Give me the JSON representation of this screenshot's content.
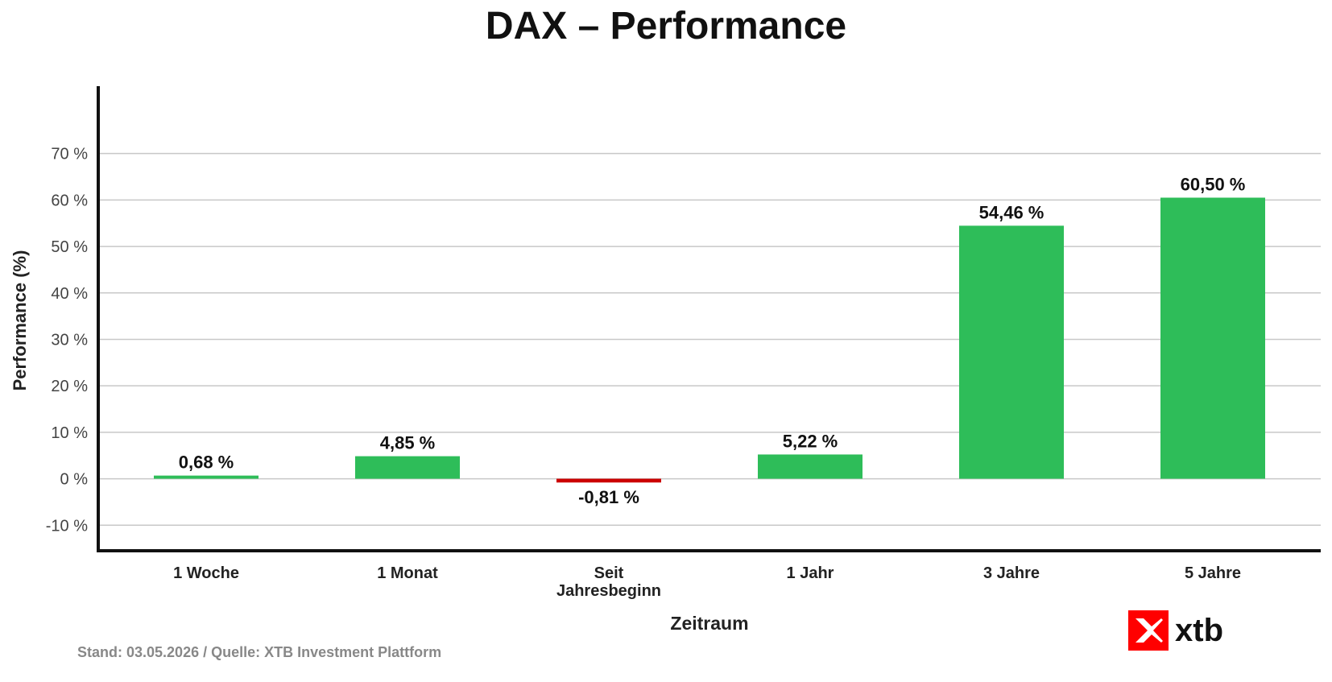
{
  "chart_data": {
    "type": "bar",
    "title": "DAX – Performance",
    "xlabel": "Zeitraum",
    "ylabel": "Performance (%)",
    "categories": [
      "1 Woche",
      "1 Monat",
      "Seit Jahresbeginn",
      "1 Jahr",
      "3 Jahre",
      "5 Jahre"
    ],
    "category_lines": [
      [
        "1 Woche"
      ],
      [
        "1 Monat"
      ],
      [
        "Seit",
        "Jahresbeginn"
      ],
      [
        "1 Jahr"
      ],
      [
        "3 Jahre"
      ],
      [
        "5 Jahre"
      ]
    ],
    "values": [
      0.68,
      4.85,
      -0.81,
      5.22,
      54.46,
      60.5
    ],
    "value_labels": [
      "0,68 %",
      "4,85 %",
      "-0,81 %",
      "5,22 %",
      "54,46 %",
      "60,50 %"
    ],
    "yticks": [
      -10,
      0,
      10,
      20,
      30,
      40,
      50,
      60,
      70
    ],
    "ytick_labels": [
      "-10 %",
      "0 %",
      "10 %",
      "20 %",
      "30 %",
      "40 %",
      "50 %",
      "60 %",
      "70 %"
    ],
    "ylim": [
      -15.5,
      84.5
    ],
    "grid": true,
    "colors": {
      "positive": "#2ebd59",
      "negative": "#cc0000",
      "grid": "#c8c8c8",
      "axis": "#111111"
    }
  },
  "footer": {
    "source": "Stand: 03.05.2026 / Quelle: XTB Investment Plattform"
  },
  "logo": {
    "text": "xtb",
    "color": "#ff0000"
  }
}
